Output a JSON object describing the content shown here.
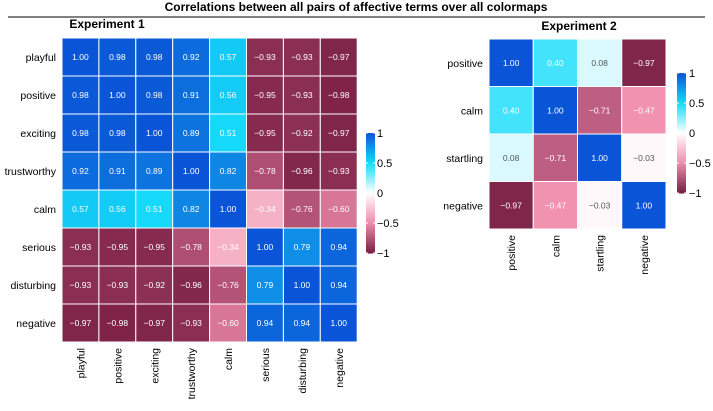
{
  "figure_title": "Correlations between all pairs of affective terms over all colormaps",
  "colors": {
    "negative_end": "#7a1f45",
    "mid_negative": "#f08cab",
    "zero": "#ffffff",
    "mid_positive": "#14dcfa",
    "positive_end": "#0a55d7"
  },
  "chart_data": [
    {
      "type": "heatmap",
      "title": "Experiment 1",
      "rows": [
        "playful",
        "positive",
        "exciting",
        "trustworthy",
        "calm",
        "serious",
        "disturbing",
        "negative"
      ],
      "cols": [
        "playful",
        "positive",
        "exciting",
        "trustworthy",
        "calm",
        "serious",
        "disturbing",
        "negative"
      ],
      "values": [
        [
          1.0,
          0.98,
          0.98,
          0.92,
          0.57,
          -0.93,
          -0.93,
          -0.97
        ],
        [
          0.98,
          1.0,
          0.98,
          0.91,
          0.56,
          -0.95,
          -0.93,
          -0.98
        ],
        [
          0.98,
          0.98,
          1.0,
          0.89,
          0.51,
          -0.95,
          -0.92,
          -0.97
        ],
        [
          0.92,
          0.91,
          0.89,
          1.0,
          0.82,
          -0.78,
          -0.96,
          -0.93
        ],
        [
          0.57,
          0.56,
          0.51,
          0.82,
          1.0,
          -0.34,
          -0.76,
          -0.6
        ],
        [
          -0.93,
          -0.95,
          -0.95,
          -0.78,
          -0.34,
          1.0,
          0.79,
          0.94
        ],
        [
          -0.93,
          -0.93,
          -0.92,
          -0.96,
          -0.76,
          0.79,
          1.0,
          0.94
        ],
        [
          -0.97,
          -0.98,
          -0.97,
          -0.93,
          -0.6,
          0.94,
          0.94,
          1.0
        ]
      ],
      "colorbar": {
        "range": [
          -1,
          1
        ],
        "ticks": [
          "1",
          "0.5",
          "0",
          "−0.5",
          "−1"
        ]
      }
    },
    {
      "type": "heatmap",
      "title": "Experiment 2",
      "rows": [
        "positive",
        "calm",
        "startling",
        "negative"
      ],
      "cols": [
        "positive",
        "calm",
        "startling",
        "negative"
      ],
      "values": [
        [
          1.0,
          0.4,
          0.08,
          -0.97
        ],
        [
          0.4,
          1.0,
          -0.71,
          -0.47
        ],
        [
          0.08,
          -0.71,
          1.0,
          -0.03
        ],
        [
          -0.97,
          -0.47,
          -0.03,
          1.0
        ]
      ],
      "colorbar": {
        "range": [
          -1,
          1
        ],
        "ticks": [
          "1",
          "0.5",
          "0",
          "−0.5",
          "−1"
        ]
      }
    }
  ]
}
